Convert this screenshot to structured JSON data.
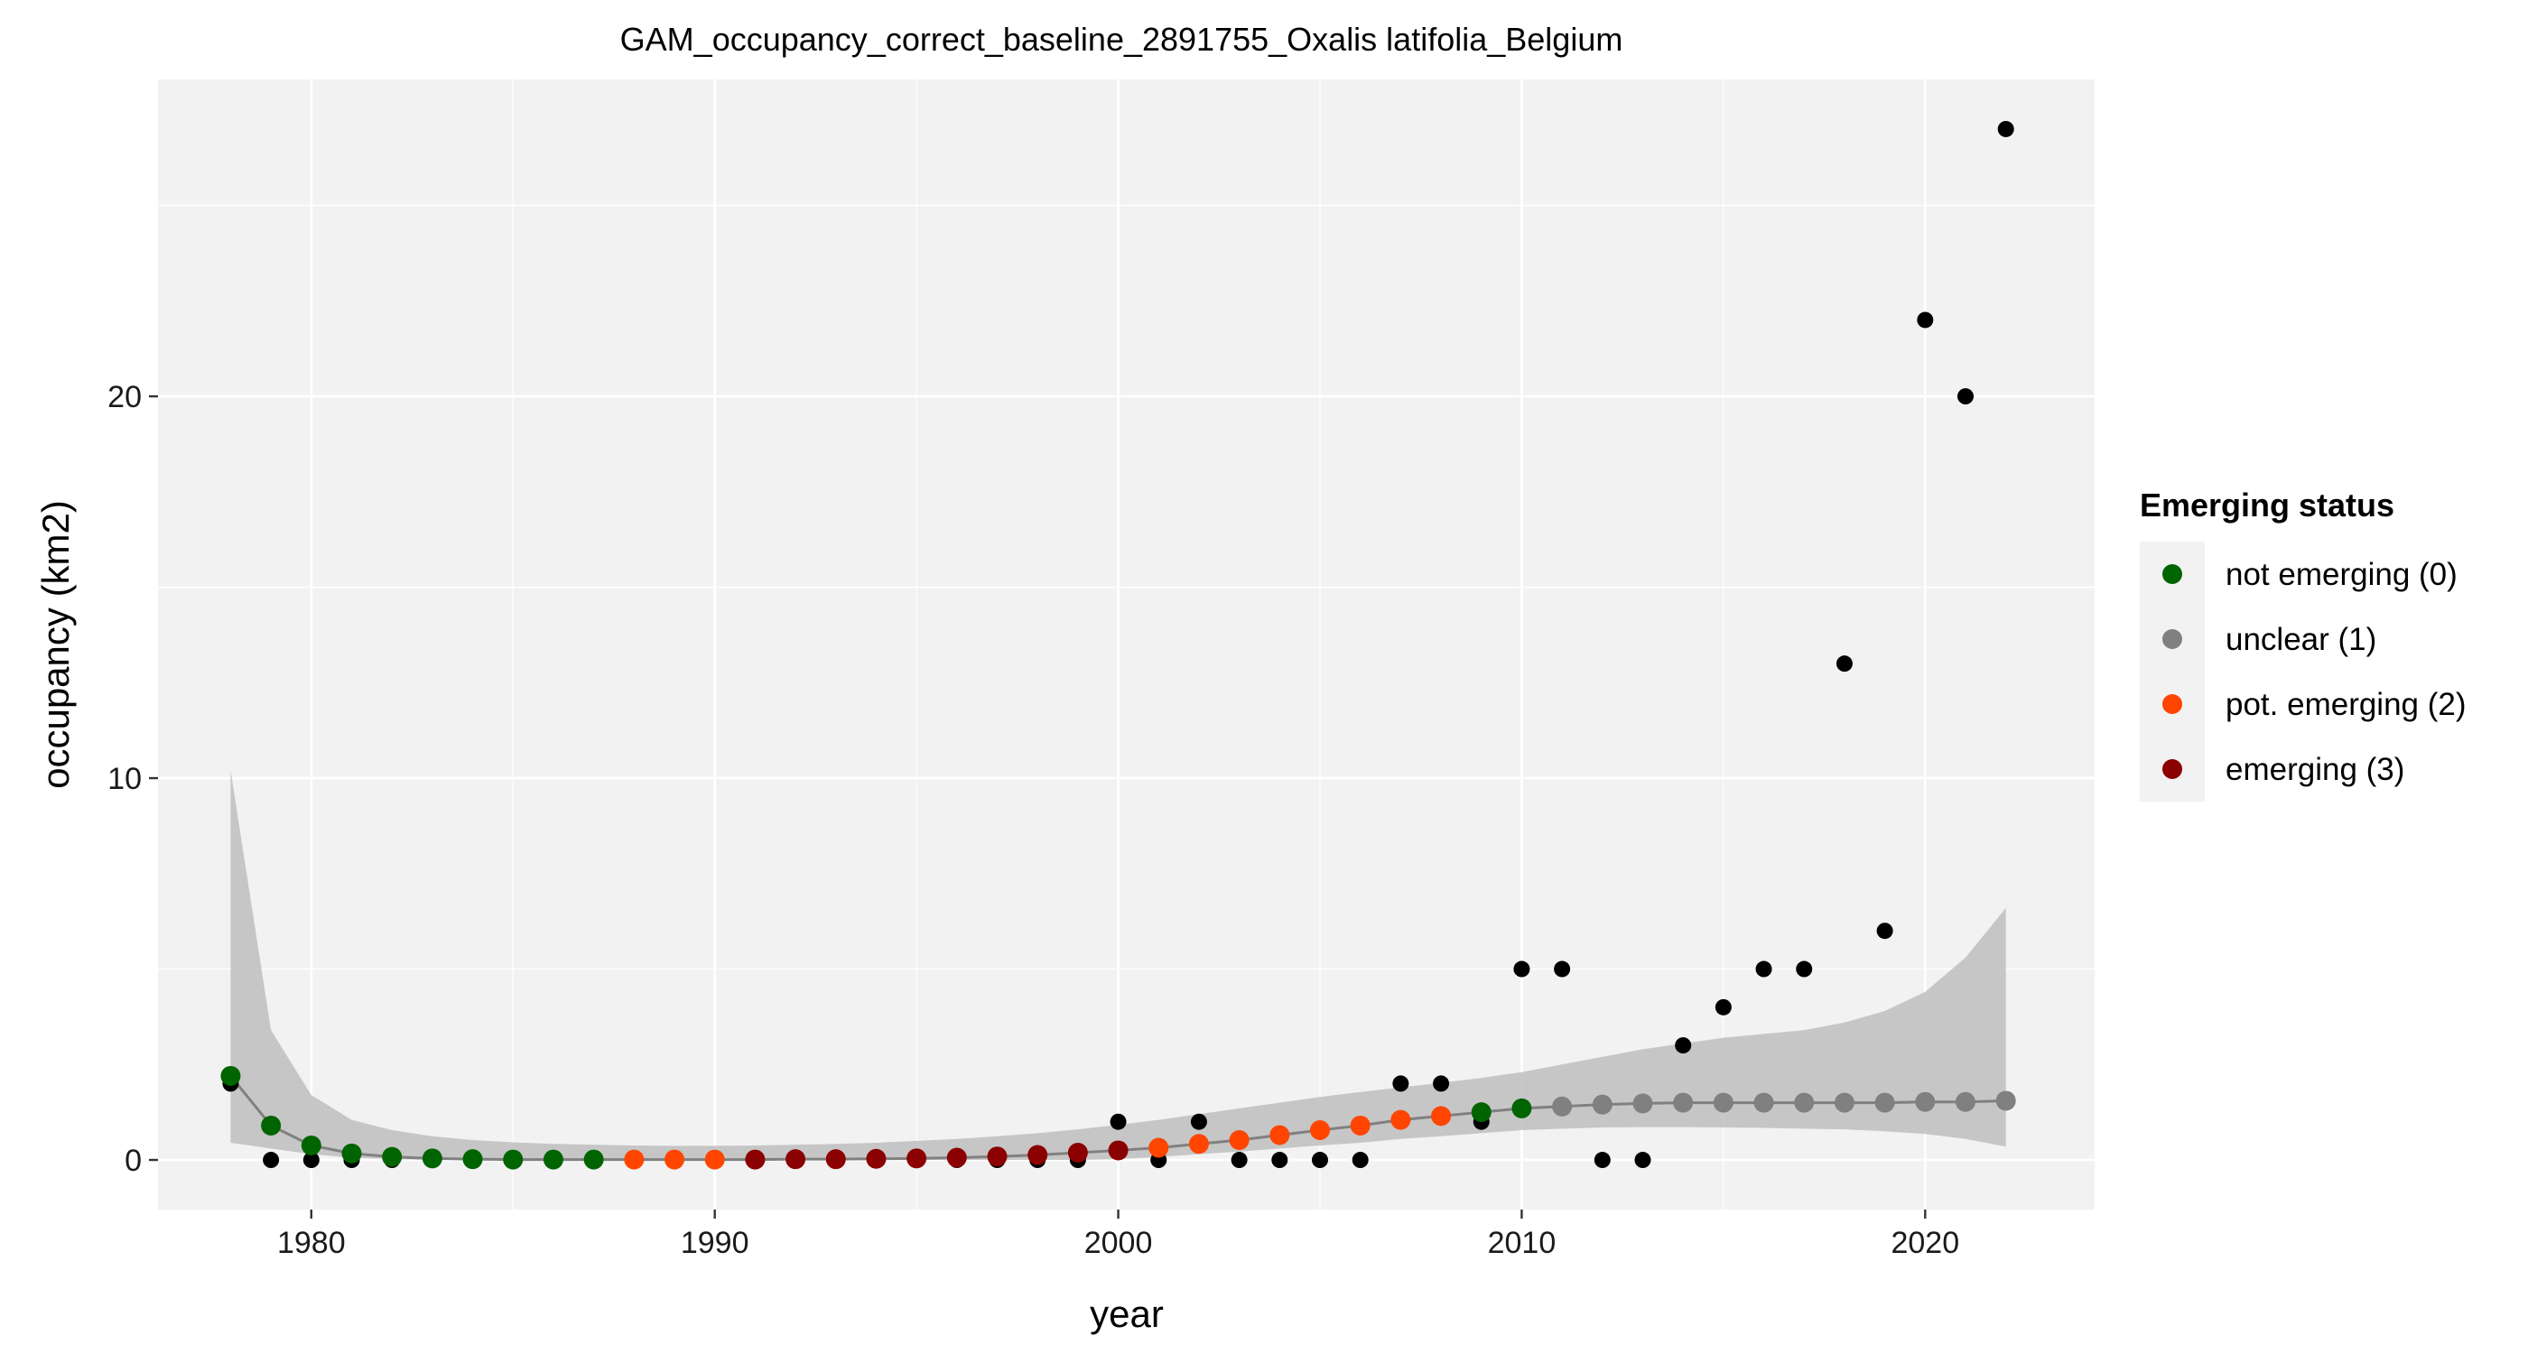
{
  "chart_data": {
    "type": "scatter",
    "title": "GAM_occupancy_correct_baseline_2891755_Oxalis latifolia_Belgium",
    "xlabel": "year",
    "ylabel": "occupancy (km2)",
    "xlim": [
      1976.2,
      2024.2
    ],
    "ylim": [
      -1.3,
      28.3
    ],
    "xticks": [
      1980,
      1990,
      2000,
      2010,
      2020
    ],
    "xtick_labels": [
      "1980",
      "1990",
      "2000",
      "2010",
      "2020"
    ],
    "yticks": [
      0,
      10,
      20
    ],
    "ytick_labels": [
      "0",
      "10",
      "20"
    ],
    "grid": true,
    "legend": {
      "title": "Emerging status",
      "placement": "right",
      "entries": [
        {
          "label": "not emerging (0)",
          "color": "#006400"
        },
        {
          "label": "unclear (1)",
          "color": "#808080"
        },
        {
          "label": "pot. emerging (2)",
          "color": "#FF4500"
        },
        {
          "label": "emerging (3)",
          "color": "#8B0000"
        }
      ]
    },
    "observed": {
      "color": "#000000",
      "x": [
        1978,
        1979,
        1980,
        1981,
        1982,
        1983,
        1984,
        1985,
        1986,
        1987,
        1988,
        1989,
        1990,
        1991,
        1992,
        1993,
        1994,
        1995,
        1996,
        1997,
        1998,
        1999,
        2000,
        2001,
        2002,
        2003,
        2004,
        2005,
        2006,
        2007,
        2008,
        2009,
        2010,
        2011,
        2012,
        2013,
        2014,
        2015,
        2016,
        2017,
        2018,
        2019,
        2020,
        2021,
        2022
      ],
      "y": [
        2,
        0,
        0,
        0,
        0,
        0,
        0,
        0,
        0,
        0,
        0,
        0,
        0,
        0,
        0,
        0,
        0,
        0,
        0,
        0,
        0,
        0,
        1,
        0,
        1,
        0,
        0,
        0,
        0,
        2,
        2,
        1,
        5,
        5,
        0,
        0,
        3,
        4,
        5,
        5,
        13,
        6,
        22,
        20,
        27
      ]
    },
    "fitted": {
      "line_color": "#808080",
      "band_color": "#bebebe",
      "x": [
        1978,
        1979,
        1980,
        1981,
        1982,
        1983,
        1984,
        1985,
        1986,
        1987,
        1988,
        1989,
        1990,
        1991,
        1992,
        1993,
        1994,
        1995,
        1996,
        1997,
        1998,
        1999,
        2000,
        2001,
        2002,
        2003,
        2004,
        2005,
        2006,
        2007,
        2008,
        2009,
        2010,
        2011,
        2012,
        2013,
        2014,
        2015,
        2016,
        2017,
        2018,
        2019,
        2020,
        2021,
        2022
      ],
      "y": [
        2.2,
        0.9,
        0.38,
        0.17,
        0.08,
        0.04,
        0.02,
        0.01,
        0.01,
        0.01,
        0.01,
        0.01,
        0.01,
        0.01,
        0.02,
        0.02,
        0.03,
        0.04,
        0.06,
        0.09,
        0.13,
        0.19,
        0.25,
        0.32,
        0.42,
        0.52,
        0.65,
        0.78,
        0.9,
        1.05,
        1.15,
        1.25,
        1.35,
        1.4,
        1.45,
        1.48,
        1.5,
        1.5,
        1.5,
        1.5,
        1.5,
        1.5,
        1.52,
        1.52,
        1.55
      ],
      "lower": [
        0.45,
        0.3,
        0.15,
        0.06,
        0.02,
        0.0,
        0.0,
        0.0,
        0.0,
        0.0,
        0.0,
        0.0,
        0.0,
        0.0,
        0.0,
        0.0,
        0.0,
        0.0,
        0.0,
        0.0,
        0.0,
        0.0,
        0.02,
        0.08,
        0.15,
        0.22,
        0.3,
        0.38,
        0.45,
        0.55,
        0.62,
        0.7,
        0.78,
        0.82,
        0.85,
        0.86,
        0.86,
        0.85,
        0.84,
        0.82,
        0.8,
        0.75,
        0.68,
        0.55,
        0.35
      ],
      "upper": [
        10.2,
        3.4,
        1.7,
        1.05,
        0.78,
        0.62,
        0.52,
        0.46,
        0.42,
        0.4,
        0.38,
        0.37,
        0.37,
        0.38,
        0.4,
        0.42,
        0.45,
        0.5,
        0.55,
        0.62,
        0.7,
        0.8,
        0.92,
        1.05,
        1.2,
        1.35,
        1.5,
        1.65,
        1.78,
        1.9,
        2.02,
        2.15,
        2.3,
        2.5,
        2.7,
        2.9,
        3.05,
        3.2,
        3.3,
        3.4,
        3.6,
        3.9,
        4.4,
        5.3,
        6.6
      ],
      "status": [
        0,
        0,
        0,
        0,
        0,
        0,
        0,
        0,
        0,
        0,
        2,
        2,
        2,
        3,
        3,
        3,
        3,
        3,
        3,
        3,
        3,
        3,
        3,
        2,
        2,
        2,
        2,
        2,
        2,
        2,
        2,
        0,
        0,
        1,
        1,
        1,
        1,
        1,
        1,
        1,
        1,
        1,
        1,
        1,
        1
      ]
    }
  }
}
